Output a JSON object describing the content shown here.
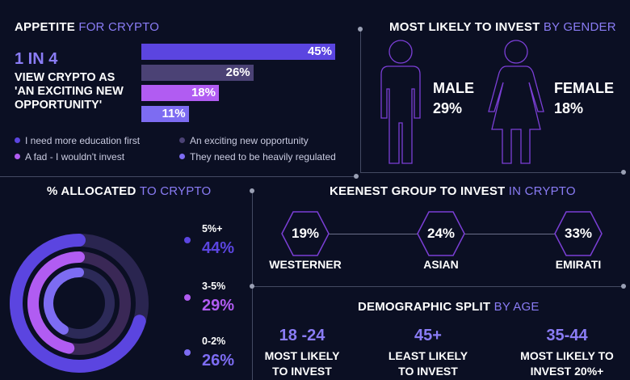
{
  "colors": {
    "background": "#0b0f23",
    "accent": "#8a7cf5",
    "bar1": "#5b45e0",
    "bar2": "#4b4275",
    "bar3": "#b15cf2",
    "bar4": "#7d6cf2",
    "divider": "#444a63",
    "outline": "#7b3fd6"
  },
  "appetite": {
    "title_main": "APPETITE",
    "title_hl": "FOR CRYPTO",
    "big_stat": "1 IN 4",
    "desc_lines": [
      "VIEW CRYPTO AS",
      "'AN EXCITING NEW",
      "OPPORTUNITY'"
    ],
    "legend": [
      {
        "label": "I need more education first",
        "color": "#5b45e0",
        "icon": "circle"
      },
      {
        "label": "An exciting new opportunity",
        "color": "#4b4275",
        "icon": "circle"
      },
      {
        "label": "A fad - I wouldn't invest",
        "color": "#b15cf2",
        "icon": "circle"
      },
      {
        "label": "They need to be heavily regulated",
        "color": "#7d6cf2",
        "icon": "circle"
      }
    ]
  },
  "gender": {
    "title_main": "MOST LIKELY TO INVEST",
    "title_hl": "BY GENDER",
    "male": {
      "label": "MALE",
      "value": "29%",
      "icon": "male-figure-icon"
    },
    "female": {
      "label": "FEMALE",
      "value": "18%",
      "icon": "female-figure-icon"
    }
  },
  "allocated": {
    "title_main": "% ALLOCATED",
    "title_hl": "TO CRYPTO",
    "items": [
      {
        "label": "5%+",
        "value": "44%",
        "color": "#5b45e0"
      },
      {
        "label": "3-5%",
        "value": "29%",
        "color": "#b15cf2"
      },
      {
        "label": "0-2%",
        "value": "26%",
        "color": "#7d6cf2"
      }
    ]
  },
  "keenest": {
    "title_main": "KEENEST GROUP TO INVEST",
    "title_hl": "IN CRYPTO",
    "groups": [
      {
        "name": "WESTERNER",
        "value": "19%"
      },
      {
        "name": "ASIAN",
        "value": "24%"
      },
      {
        "name": "EMIRATI",
        "value": "33%"
      }
    ]
  },
  "demographic": {
    "title_main": "DEMOGRAPHIC SPLIT",
    "title_hl": "BY AGE",
    "items": [
      {
        "value": "18 -24",
        "line1": "MOST LIKELY",
        "line2": "TO INVEST"
      },
      {
        "value": "45+",
        "line1": "LEAST LIKELY",
        "line2": "TO INVEST"
      },
      {
        "value": "35-44",
        "line1": "MOST LIKELY TO",
        "line2": "INVEST 20%+"
      }
    ]
  },
  "chart_data": [
    {
      "type": "bar",
      "orientation": "horizontal",
      "title": "APPETITE FOR CRYPTO",
      "categories": [
        "I need more education first",
        "An exciting new opportunity",
        "A fad - I wouldn't invest",
        "They need to be heavily regulated"
      ],
      "values": [
        45,
        26,
        18,
        11
      ],
      "labels": [
        "45%",
        "26%",
        "18%",
        "11%"
      ],
      "xlim": [
        0,
        45
      ]
    },
    {
      "type": "pie",
      "style": "concentric-rings",
      "title": "% ALLOCATED TO CRYPTO",
      "categories": [
        "5%+",
        "3-5%",
        "0-2%"
      ],
      "values": [
        44,
        29,
        26
      ]
    },
    {
      "type": "bar",
      "title": "MOST LIKELY TO INVEST BY GENDER",
      "categories": [
        "MALE",
        "FEMALE"
      ],
      "values": [
        29,
        18
      ]
    },
    {
      "type": "bar",
      "title": "KEENEST GROUP TO INVEST IN CRYPTO",
      "categories": [
        "WESTERNER",
        "ASIAN",
        "EMIRATI"
      ],
      "values": [
        19,
        24,
        33
      ]
    }
  ]
}
